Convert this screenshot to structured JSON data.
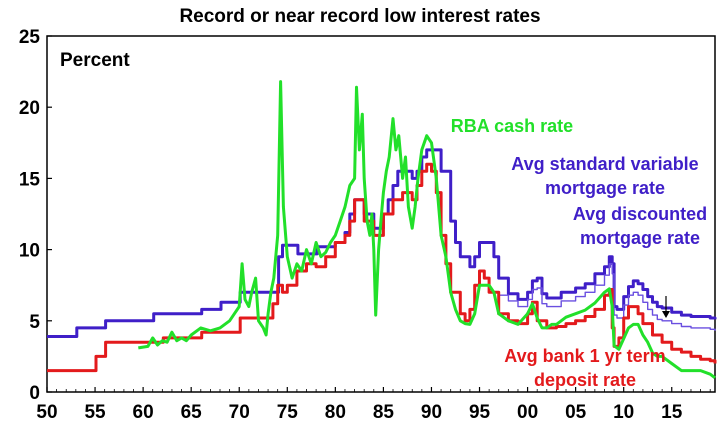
{
  "chart_data": {
    "type": "line",
    "title": "Record or near record low interest rates",
    "unit_label": "Percent",
    "xlim": [
      1950,
      2019.5
    ],
    "ylim": [
      0,
      25
    ],
    "x_ticks": [
      1950,
      1955,
      1960,
      1965,
      1970,
      1975,
      1980,
      1985,
      1990,
      1995,
      2000,
      2005,
      2010,
      2015
    ],
    "x_tick_labels": [
      "50",
      "55",
      "60",
      "65",
      "70",
      "75",
      "80",
      "85",
      "90",
      "95",
      "00",
      "05",
      "10",
      "15"
    ],
    "y_ticks": [
      0,
      5,
      10,
      15,
      20,
      25
    ],
    "y_tick_labels": [
      "0",
      "5",
      "10",
      "15",
      "20",
      "25"
    ],
    "grid": false,
    "series": [
      {
        "name": "Avg standard variable mortgage rate",
        "color": "#3f1fc8",
        "label": [
          "Avg standard variable",
          "mortgage rate"
        ],
        "step": true,
        "points": [
          [
            1950,
            3.9
          ],
          [
            1953,
            3.9
          ],
          [
            1953.1,
            4.5
          ],
          [
            1956,
            4.5
          ],
          [
            1956.1,
            5.0
          ],
          [
            1961,
            5.0
          ],
          [
            1961.1,
            5.5
          ],
          [
            1966,
            5.5
          ],
          [
            1966.1,
            5.8
          ],
          [
            1968,
            5.8
          ],
          [
            1968.1,
            6.3
          ],
          [
            1970,
            6.3
          ],
          [
            1970.1,
            7.0
          ],
          [
            1974,
            7.0
          ],
          [
            1974.1,
            9.5
          ],
          [
            1974.5,
            10.3
          ],
          [
            1976,
            10.3
          ],
          [
            1976.1,
            9.7
          ],
          [
            1978,
            9.7
          ],
          [
            1978.1,
            10.2
          ],
          [
            1979,
            10.2
          ],
          [
            1980,
            10.5
          ],
          [
            1981,
            11.2
          ],
          [
            1981.5,
            12.5
          ],
          [
            1982,
            13.5
          ],
          [
            1983,
            12.5
          ],
          [
            1984,
            11.5
          ],
          [
            1985,
            12.5
          ],
          [
            1985.5,
            13.5
          ],
          [
            1986,
            14.5
          ],
          [
            1986.5,
            15.5
          ],
          [
            1988,
            15.0
          ],
          [
            1988.5,
            15.5
          ],
          [
            1989,
            16.5
          ],
          [
            1989.5,
            17.0
          ],
          [
            1990.5,
            17.0
          ],
          [
            1991,
            15.5
          ],
          [
            1992,
            12.0
          ],
          [
            1992.5,
            10.5
          ],
          [
            1993,
            9.5
          ],
          [
            1994,
            8.8
          ],
          [
            1994.5,
            9.5
          ],
          [
            1995,
            10.5
          ],
          [
            1996,
            10.5
          ],
          [
            1996.5,
            9.5
          ],
          [
            1997,
            8.0
          ],
          [
            1998,
            6.9
          ],
          [
            1999,
            6.5
          ],
          [
            2000,
            7.0
          ],
          [
            2000.5,
            7.8
          ],
          [
            2001,
            8.0
          ],
          [
            2001.5,
            6.9
          ],
          [
            2002,
            6.6
          ],
          [
            2003,
            6.6
          ],
          [
            2003.5,
            7.0
          ],
          [
            2005,
            7.3
          ],
          [
            2006,
            7.6
          ],
          [
            2007,
            8.3
          ],
          [
            2008,
            8.8
          ],
          [
            2008.5,
            9.5
          ],
          [
            2008.8,
            9.0
          ],
          [
            2009,
            6.0
          ],
          [
            2009.3,
            5.8
          ],
          [
            2010,
            6.7
          ],
          [
            2010.5,
            7.4
          ],
          [
            2011,
            7.8
          ],
          [
            2011.5,
            7.6
          ],
          [
            2012,
            7.2
          ],
          [
            2012.5,
            6.7
          ],
          [
            2013,
            6.3
          ],
          [
            2013.5,
            6.0
          ],
          [
            2014,
            5.9
          ],
          [
            2015,
            5.6
          ],
          [
            2016,
            5.4
          ],
          [
            2017,
            5.3
          ],
          [
            2018,
            5.3
          ],
          [
            2019,
            5.2
          ],
          [
            2019.5,
            5.1
          ]
        ]
      },
      {
        "name": "Avg discounted mortgage rate",
        "color": "#6a4fe0",
        "label": [
          "Avg discounted",
          "mortgage rate"
        ],
        "step": true,
        "points": [
          [
            1997,
            6.8
          ],
          [
            1998,
            6.4
          ],
          [
            1999,
            6.0
          ],
          [
            2000,
            6.5
          ],
          [
            2000.5,
            7.2
          ],
          [
            2001,
            7.3
          ],
          [
            2001.5,
            6.2
          ],
          [
            2002,
            6.0
          ],
          [
            2003,
            6.0
          ],
          [
            2003.5,
            6.4
          ],
          [
            2005,
            6.7
          ],
          [
            2006,
            7.0
          ],
          [
            2007,
            7.5
          ],
          [
            2008,
            8.2
          ],
          [
            2008.5,
            9.0
          ],
          [
            2008.8,
            8.3
          ],
          [
            2009,
            5.4
          ],
          [
            2009.3,
            5.2
          ],
          [
            2010,
            6.1
          ],
          [
            2010.5,
            6.8
          ],
          [
            2011,
            7.0
          ],
          [
            2011.5,
            6.8
          ],
          [
            2012,
            6.3
          ],
          [
            2012.5,
            5.8
          ],
          [
            2013,
            5.4
          ],
          [
            2013.5,
            5.1
          ],
          [
            2014,
            5.0
          ],
          [
            2015,
            4.8
          ],
          [
            2016,
            4.6
          ],
          [
            2017,
            4.5
          ],
          [
            2018,
            4.5
          ],
          [
            2019,
            4.4
          ],
          [
            2019.5,
            4.3
          ]
        ]
      },
      {
        "name": "Avg bank 1 yr term deposit rate",
        "color": "#e31a1c",
        "label": [
          "Avg bank 1 yr term",
          "deposit rate"
        ],
        "step": true,
        "points": [
          [
            1950,
            1.5
          ],
          [
            1955,
            1.5
          ],
          [
            1955.1,
            2.5
          ],
          [
            1956,
            2.5
          ],
          [
            1956.1,
            3.5
          ],
          [
            1962,
            3.5
          ],
          [
            1962.1,
            3.8
          ],
          [
            1966,
            3.8
          ],
          [
            1966.1,
            4.2
          ],
          [
            1970,
            4.2
          ],
          [
            1970.1,
            5.2
          ],
          [
            1973,
            5.2
          ],
          [
            1973.5,
            6.2
          ],
          [
            1974,
            7.5
          ],
          [
            1974.5,
            7.0
          ],
          [
            1975,
            7.5
          ],
          [
            1976,
            8.5
          ],
          [
            1977,
            9.0
          ],
          [
            1978,
            8.8
          ],
          [
            1979,
            9.5
          ],
          [
            1980,
            10.5
          ],
          [
            1981,
            11.0
          ],
          [
            1981.5,
            12.0
          ],
          [
            1982,
            13.5
          ],
          [
            1983,
            12.0
          ],
          [
            1984,
            11.0
          ],
          [
            1985,
            12.5
          ],
          [
            1986,
            13.5
          ],
          [
            1987,
            14.0
          ],
          [
            1988,
            13.5
          ],
          [
            1988.5,
            14.5
          ],
          [
            1989,
            15.5
          ],
          [
            1989.5,
            16.0
          ],
          [
            1990,
            15.5
          ],
          [
            1990.5,
            14.0
          ],
          [
            1991,
            11.0
          ],
          [
            1991.5,
            9.0
          ],
          [
            1992,
            7.0
          ],
          [
            1993,
            5.5
          ],
          [
            1993.5,
            5.0
          ],
          [
            1994,
            5.8
          ],
          [
            1994.5,
            7.5
          ],
          [
            1995,
            8.5
          ],
          [
            1995.5,
            8.0
          ],
          [
            1996,
            7.0
          ],
          [
            1997,
            5.5
          ],
          [
            1998,
            5.0
          ],
          [
            1999,
            4.8
          ],
          [
            2000,
            5.5
          ],
          [
            2000.5,
            6.3
          ],
          [
            2001,
            5.0
          ],
          [
            2002,
            4.5
          ],
          [
            2003,
            4.6
          ],
          [
            2004,
            4.8
          ],
          [
            2005,
            5.0
          ],
          [
            2006,
            5.3
          ],
          [
            2007,
            5.8
          ],
          [
            2008,
            6.8
          ],
          [
            2008.5,
            7.2
          ],
          [
            2008.8,
            4.5
          ],
          [
            2009,
            3.2
          ],
          [
            2009.5,
            3.8
          ],
          [
            2010,
            5.2
          ],
          [
            2010.5,
            6.0
          ],
          [
            2011,
            6.0
          ],
          [
            2011.5,
            5.5
          ],
          [
            2012,
            4.8
          ],
          [
            2013,
            4.0
          ],
          [
            2014,
            3.5
          ],
          [
            2015,
            3.0
          ],
          [
            2016,
            2.8
          ],
          [
            2017,
            2.5
          ],
          [
            2018,
            2.3
          ],
          [
            2019,
            2.2
          ],
          [
            2019.5,
            2.0
          ]
        ]
      },
      {
        "name": "RBA cash rate",
        "color": "#22e02a",
        "label": [
          "RBA cash rate"
        ],
        "step": false,
        "points": [
          [
            1959.5,
            3.1
          ],
          [
            1960.5,
            3.2
          ],
          [
            1961,
            3.8
          ],
          [
            1961.5,
            3.3
          ],
          [
            1962,
            3.6
          ],
          [
            1962.5,
            3.5
          ],
          [
            1963,
            4.2
          ],
          [
            1963.5,
            3.6
          ],
          [
            1964,
            3.8
          ],
          [
            1964.5,
            3.6
          ],
          [
            1965,
            4.0
          ],
          [
            1966,
            4.5
          ],
          [
            1967,
            4.3
          ],
          [
            1968,
            4.5
          ],
          [
            1969,
            5.0
          ],
          [
            1969.5,
            5.5
          ],
          [
            1970,
            6.0
          ],
          [
            1970.3,
            9.0
          ],
          [
            1970.6,
            6.5
          ],
          [
            1971,
            6.0
          ],
          [
            1971.3,
            7.0
          ],
          [
            1971.7,
            8.0
          ],
          [
            1972,
            5.0
          ],
          [
            1972.5,
            4.5
          ],
          [
            1972.8,
            4.0
          ],
          [
            1973,
            5.5
          ],
          [
            1973.3,
            7.0
          ],
          [
            1973.6,
            8.0
          ],
          [
            1974,
            11.0
          ],
          [
            1974.3,
            21.8
          ],
          [
            1974.6,
            13.0
          ],
          [
            1975,
            9.5
          ],
          [
            1975.5,
            8.0
          ],
          [
            1976,
            9.0
          ],
          [
            1976.5,
            8.5
          ],
          [
            1977,
            10.0
          ],
          [
            1977.5,
            9.0
          ],
          [
            1978,
            10.5
          ],
          [
            1978.5,
            9.5
          ],
          [
            1979,
            9.8
          ],
          [
            1979.5,
            10.5
          ],
          [
            1980,
            11.0
          ],
          [
            1980.5,
            12.0
          ],
          [
            1981,
            13.0
          ],
          [
            1981.5,
            14.5
          ],
          [
            1982,
            15.0
          ],
          [
            1982.2,
            21.4
          ],
          [
            1982.5,
            17.0
          ],
          [
            1982.8,
            19.5
          ],
          [
            1983,
            15.0
          ],
          [
            1983.3,
            12.0
          ],
          [
            1983.6,
            11.0
          ],
          [
            1983.8,
            12.5
          ],
          [
            1984,
            10.0
          ],
          [
            1984.2,
            5.4
          ],
          [
            1984.5,
            10.0
          ],
          [
            1984.8,
            12.5
          ],
          [
            1985,
            14.0
          ],
          [
            1985.3,
            15.5
          ],
          [
            1985.6,
            16.5
          ],
          [
            1986,
            19.2
          ],
          [
            1986.3,
            17.0
          ],
          [
            1986.6,
            18.0
          ],
          [
            1987,
            15.0
          ],
          [
            1987.3,
            16.5
          ],
          [
            1987.6,
            13.0
          ],
          [
            1988,
            11.5
          ],
          [
            1988.3,
            13.0
          ],
          [
            1988.6,
            15.0
          ],
          [
            1989,
            17.0
          ],
          [
            1989.5,
            18.0
          ],
          [
            1990,
            17.5
          ],
          [
            1990.5,
            15.0
          ],
          [
            1991,
            11.0
          ],
          [
            1991.5,
            9.5
          ],
          [
            1992,
            7.0
          ],
          [
            1992.5,
            5.8
          ],
          [
            1993,
            5.0
          ],
          [
            1993.5,
            4.8
          ],
          [
            1994,
            4.75
          ],
          [
            1994.5,
            5.5
          ],
          [
            1995,
            7.5
          ],
          [
            1996,
            7.5
          ],
          [
            1996.5,
            7.0
          ],
          [
            1997,
            5.5
          ],
          [
            1998,
            5.0
          ],
          [
            1999,
            4.75
          ],
          [
            2000,
            5.5
          ],
          [
            2000.5,
            6.2
          ],
          [
            2001,
            5.2
          ],
          [
            2001.5,
            4.5
          ],
          [
            2002,
            4.5
          ],
          [
            2002.5,
            4.75
          ],
          [
            2003,
            4.75
          ],
          [
            2004,
            5.25
          ],
          [
            2005,
            5.5
          ],
          [
            2006,
            5.75
          ],
          [
            2007,
            6.25
          ],
          [
            2008,
            7.0
          ],
          [
            2008.5,
            7.25
          ],
          [
            2008.8,
            6.0
          ],
          [
            2009,
            3.25
          ],
          [
            2009.5,
            3.0
          ],
          [
            2010,
            3.75
          ],
          [
            2010.5,
            4.5
          ],
          [
            2011,
            4.75
          ],
          [
            2011.5,
            4.75
          ],
          [
            2012,
            4.0
          ],
          [
            2012.5,
            3.5
          ],
          [
            2013,
            2.75
          ],
          [
            2013.5,
            2.5
          ],
          [
            2014,
            2.5
          ],
          [
            2015,
            2.0
          ],
          [
            2016,
            1.5
          ],
          [
            2017,
            1.5
          ],
          [
            2018,
            1.5
          ],
          [
            2019,
            1.25
          ],
          [
            2019.5,
            1.0
          ]
        ]
      }
    ]
  }
}
